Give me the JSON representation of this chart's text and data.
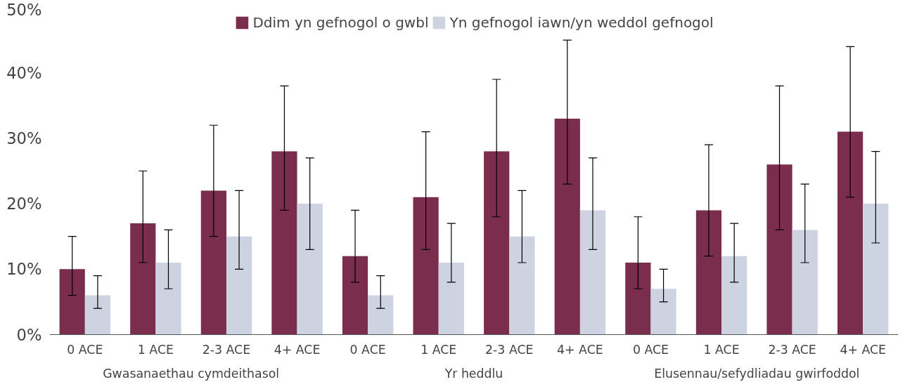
{
  "chart_data": {
    "type": "bar",
    "categories": [
      "0 ACE",
      "1 ACE",
      "2-3 ACE",
      "4+ ACE",
      "0 ACE",
      "1 ACE",
      "2-3 ACE",
      "4+ ACE",
      "0 ACE",
      "1 ACE",
      "2-3 ACE",
      "4+ ACE"
    ],
    "annotations": [
      "Gwasanaethau cymdeithasol",
      "Yr heddlu",
      "Elusennau/sefydliadau gwirfoddol"
    ],
    "series": [
      {
        "name": "Ddim yn gefnogol o gwbl",
        "color": "#7b2d4e",
        "values": [
          10,
          17,
          22,
          28,
          12,
          21,
          28,
          33,
          11,
          19,
          26,
          31
        ],
        "errors": [
          [
            6,
            15
          ],
          [
            11,
            25
          ],
          [
            15,
            32
          ],
          [
            19,
            38
          ],
          [
            8,
            19
          ],
          [
            13,
            31
          ],
          [
            18,
            39
          ],
          [
            23,
            45
          ],
          [
            7,
            18
          ],
          [
            12,
            29
          ],
          [
            16,
            38
          ],
          [
            21,
            44
          ]
        ]
      },
      {
        "name": "Yn gefnogol iawn/yn weddol gefnogol",
        "color": "#cdd3e0",
        "values": [
          6,
          11,
          15,
          20,
          6,
          11,
          15,
          19,
          7,
          12,
          16,
          20
        ],
        "errors": [
          [
            4,
            9
          ],
          [
            7,
            16
          ],
          [
            10,
            22
          ],
          [
            13,
            27
          ],
          [
            4,
            9
          ],
          [
            8,
            17
          ],
          [
            11,
            22
          ],
          [
            13,
            27
          ],
          [
            5,
            10
          ],
          [
            8,
            17
          ],
          [
            11,
            23
          ],
          [
            14,
            28
          ]
        ]
      }
    ],
    "ylim": [
      0,
      50
    ],
    "yticks": [
      {
        "value": 0,
        "label": "0%"
      },
      {
        "value": 10,
        "label": "10%"
      },
      {
        "value": 20,
        "label": "20%"
      },
      {
        "value": 30,
        "label": "30%"
      },
      {
        "value": 40,
        "label": "40%"
      },
      {
        "value": 50,
        "label": "50%"
      }
    ],
    "grid": false,
    "legend": "top"
  }
}
